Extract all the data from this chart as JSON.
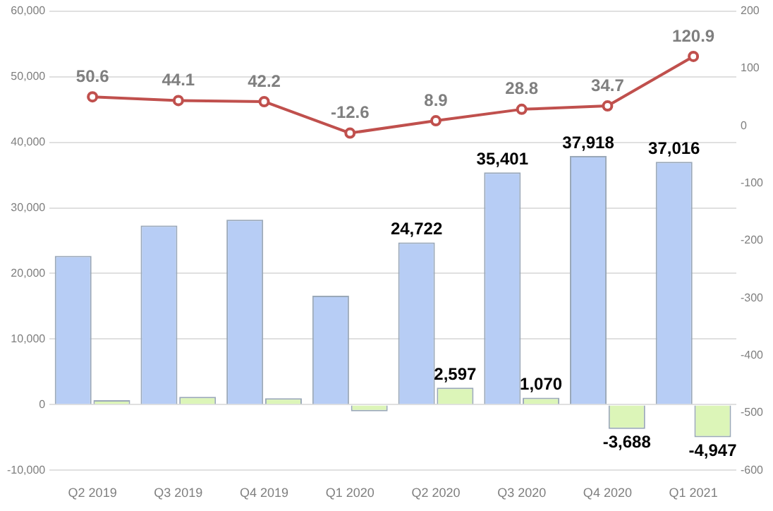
{
  "chart_data": {
    "type": "bar",
    "categories": [
      "Q2 2019",
      "Q3 2019",
      "Q4 2019",
      "Q1 2020",
      "Q2 2020",
      "Q3 2020",
      "Q4 2020",
      "Q1 2021"
    ],
    "series": [
      {
        "color": "#b7cdf5",
        "values": [
          22700,
          27300,
          28200,
          16600,
          24722,
          35401,
          37918,
          37016
        ],
        "value_labels": [
          null,
          null,
          null,
          null,
          "24,722",
          "35,401",
          "37,918",
          "37,016"
        ]
      },
      {
        "color": "#dcf5b8",
        "values": [
          700,
          1200,
          1000,
          -1000,
          2597,
          1070,
          -3688,
          -4947
        ],
        "value_labels": [
          null,
          null,
          null,
          null,
          "2,597",
          "1,070",
          "-3,688",
          "-4,947"
        ]
      },
      {
        "type": "line",
        "axis": "y2",
        "color": "#c0504d",
        "values": [
          50.6,
          44.1,
          42.2,
          -12.6,
          8.9,
          28.8,
          34.7,
          120.9
        ],
        "value_labels": [
          "50.6",
          "44.1",
          "42.2",
          "-12.6",
          "8.9",
          "28.8",
          "34.7",
          "120.9"
        ]
      }
    ],
    "ylim": [
      -10000,
      60000
    ],
    "yticks": [
      {
        "value": -10000,
        "label": "-10,000"
      },
      {
        "value": 0,
        "label": "0"
      },
      {
        "value": 10000,
        "label": "10,000"
      },
      {
        "value": 20000,
        "label": "20,000"
      },
      {
        "value": 30000,
        "label": "30,000"
      },
      {
        "value": 40000,
        "label": "40,000"
      },
      {
        "value": 50000,
        "label": "50,000"
      },
      {
        "value": 60000,
        "label": "60,000"
      }
    ],
    "y2lim": [
      -600,
      200
    ],
    "y2ticks": [
      -600,
      -500,
      -400,
      -300,
      -200,
      -100,
      0,
      100,
      200
    ],
    "grid": "y",
    "legend": false,
    "marker": "circle",
    "line_style": "solid"
  }
}
